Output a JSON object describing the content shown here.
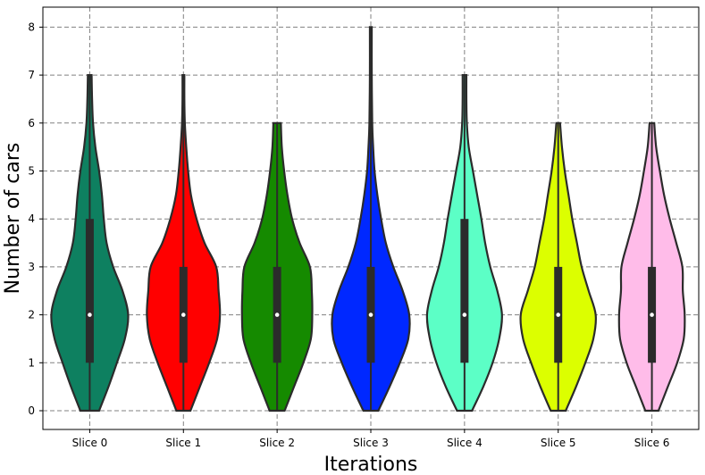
{
  "chart_data": {
    "type": "violin",
    "xlabel": "Iterations",
    "ylabel": "Number of cars",
    "ylim": [
      -0.45,
      8.4
    ],
    "yticks": [
      0,
      1,
      2,
      3,
      4,
      5,
      6,
      7,
      8
    ],
    "grid": true,
    "categories": [
      "Slice 0",
      "Slice 1",
      "Slice 2",
      "Slice 3",
      "Slice 4",
      "Slice 5",
      "Slice 6"
    ],
    "series": [
      {
        "category": "Slice 0",
        "color": "#0e8060",
        "min": 0,
        "q1": 1,
        "median": 2,
        "q3": 4,
        "max": 7,
        "density": [
          [
            0,
            0.2
          ],
          [
            0.5,
            0.4
          ],
          [
            1,
            0.58
          ],
          [
            1.5,
            0.75
          ],
          [
            2,
            0.82
          ],
          [
            2.5,
            0.7
          ],
          [
            3,
            0.5
          ],
          [
            3.5,
            0.36
          ],
          [
            4,
            0.3
          ],
          [
            4.5,
            0.26
          ],
          [
            5,
            0.2
          ],
          [
            5.5,
            0.12
          ],
          [
            6,
            0.07
          ],
          [
            6.5,
            0.05
          ],
          [
            7,
            0.04
          ]
        ]
      },
      {
        "category": "Slice 1",
        "color": "#ff0000",
        "min": 0,
        "q1": 1,
        "median": 2,
        "q3": 3,
        "max": 7,
        "density": [
          [
            0,
            0.15
          ],
          [
            0.5,
            0.35
          ],
          [
            1,
            0.55
          ],
          [
            1.5,
            0.72
          ],
          [
            2,
            0.78
          ],
          [
            2.5,
            0.75
          ],
          [
            3,
            0.7
          ],
          [
            3.5,
            0.45
          ],
          [
            4,
            0.28
          ],
          [
            4.5,
            0.16
          ],
          [
            5,
            0.1
          ],
          [
            5.5,
            0.06
          ],
          [
            6,
            0.03
          ],
          [
            6.5,
            0.02
          ],
          [
            7,
            0.02
          ]
        ]
      },
      {
        "category": "Slice 2",
        "color": "#158a00",
        "min": 0,
        "q1": 1,
        "median": 2,
        "q3": 3,
        "max": 6,
        "density": [
          [
            0,
            0.16
          ],
          [
            0.5,
            0.36
          ],
          [
            1,
            0.56
          ],
          [
            1.5,
            0.72
          ],
          [
            2,
            0.75
          ],
          [
            2.5,
            0.74
          ],
          [
            3,
            0.7
          ],
          [
            3.5,
            0.48
          ],
          [
            4,
            0.32
          ],
          [
            4.5,
            0.22
          ],
          [
            5,
            0.15
          ],
          [
            5.5,
            0.1
          ],
          [
            6,
            0.08
          ]
        ]
      },
      {
        "category": "Slice 3",
        "color": "#0028ff",
        "min": 0,
        "q1": 1,
        "median": 2,
        "q3": 3,
        "max": 8,
        "density": [
          [
            0,
            0.16
          ],
          [
            0.5,
            0.4
          ],
          [
            1,
            0.62
          ],
          [
            1.5,
            0.8
          ],
          [
            2,
            0.82
          ],
          [
            2.5,
            0.68
          ],
          [
            3,
            0.48
          ],
          [
            3.5,
            0.32
          ],
          [
            4,
            0.22
          ],
          [
            4.5,
            0.14
          ],
          [
            5,
            0.08
          ],
          [
            5.5,
            0.05
          ],
          [
            6,
            0.03
          ],
          [
            7,
            0.02
          ],
          [
            8,
            0.02
          ]
        ]
      },
      {
        "category": "Slice 4",
        "color": "#5cffc6",
        "min": 0,
        "q1": 1,
        "median": 2,
        "q3": 4,
        "max": 7,
        "density": [
          [
            0,
            0.16
          ],
          [
            0.5,
            0.4
          ],
          [
            1,
            0.6
          ],
          [
            1.5,
            0.74
          ],
          [
            2,
            0.8
          ],
          [
            2.5,
            0.7
          ],
          [
            3,
            0.55
          ],
          [
            3.5,
            0.44
          ],
          [
            4,
            0.36
          ],
          [
            4.5,
            0.27
          ],
          [
            5,
            0.18
          ],
          [
            5.5,
            0.09
          ],
          [
            6,
            0.05
          ],
          [
            6.5,
            0.04
          ],
          [
            7,
            0.04
          ]
        ]
      },
      {
        "category": "Slice 5",
        "color": "#dcff00",
        "min": 0,
        "q1": 1,
        "median": 2,
        "q3": 3,
        "max": 6,
        "density": [
          [
            0,
            0.16
          ],
          [
            0.5,
            0.38
          ],
          [
            1,
            0.58
          ],
          [
            1.5,
            0.75
          ],
          [
            2,
            0.8
          ],
          [
            2.5,
            0.65
          ],
          [
            3,
            0.5
          ],
          [
            3.5,
            0.4
          ],
          [
            4,
            0.3
          ],
          [
            4.5,
            0.22
          ],
          [
            5,
            0.14
          ],
          [
            5.5,
            0.08
          ],
          [
            6,
            0.04
          ]
        ]
      },
      {
        "category": "Slice 6",
        "color": "#ffbce9",
        "min": 0,
        "q1": 1,
        "median": 2,
        "q3": 3,
        "max": 6,
        "density": [
          [
            0,
            0.14
          ],
          [
            0.5,
            0.34
          ],
          [
            1,
            0.54
          ],
          [
            1.5,
            0.68
          ],
          [
            2,
            0.7
          ],
          [
            2.5,
            0.66
          ],
          [
            3,
            0.65
          ],
          [
            3.5,
            0.52
          ],
          [
            4,
            0.38
          ],
          [
            4.5,
            0.26
          ],
          [
            5,
            0.17
          ],
          [
            5.5,
            0.09
          ],
          [
            6,
            0.05
          ]
        ]
      }
    ]
  }
}
